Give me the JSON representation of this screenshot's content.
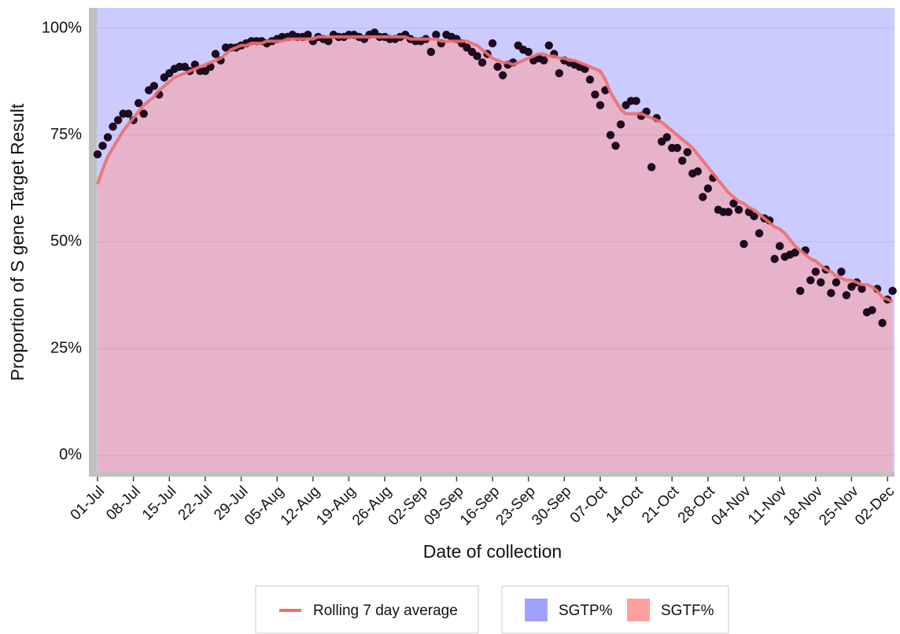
{
  "chart_data": {
    "type": "area",
    "y_label": "Proportion of S gene Target Result",
    "x_label": "Date of collection",
    "ylim": [
      -3.9,
      104.8
    ],
    "yticks": [
      {
        "value": 0,
        "label": "0%"
      },
      {
        "value": 25,
        "label": "25%"
      },
      {
        "value": 50,
        "label": "50%"
      },
      {
        "value": 75,
        "label": "75%"
      },
      {
        "value": 100,
        "label": "100%"
      }
    ],
    "grid": true,
    "categories": [
      "01-Jul",
      null,
      null,
      null,
      null,
      null,
      null,
      "08-Jul",
      null,
      null,
      null,
      null,
      null,
      null,
      "15-Jul",
      null,
      null,
      null,
      null,
      null,
      null,
      "22-Jul",
      null,
      null,
      null,
      null,
      null,
      null,
      "29-Jul",
      null,
      null,
      null,
      null,
      null,
      null,
      "05-Aug",
      null,
      null,
      null,
      null,
      null,
      null,
      "12-Aug",
      null,
      null,
      null,
      null,
      null,
      null,
      "19-Aug",
      null,
      null,
      null,
      null,
      null,
      null,
      "26-Aug",
      null,
      null,
      null,
      null,
      null,
      null,
      "02-Sep",
      null,
      null,
      null,
      null,
      null,
      null,
      "09-Sep",
      null,
      null,
      null,
      null,
      null,
      null,
      "16-Sep",
      null,
      null,
      null,
      null,
      null,
      null,
      "23-Sep",
      null,
      null,
      null,
      null,
      null,
      null,
      "30-Sep",
      null,
      null,
      null,
      null,
      null,
      null,
      "07-Oct",
      null,
      null,
      null,
      null,
      null,
      null,
      "14-Oct",
      null,
      null,
      null,
      null,
      null,
      null,
      "21-Oct",
      null,
      null,
      null,
      null,
      null,
      null,
      "28-Oct",
      null,
      null,
      null,
      null,
      null,
      null,
      "04-Nov",
      null,
      null,
      null,
      null,
      null,
      null,
      "11-Nov",
      null,
      null,
      null,
      null,
      null,
      null,
      "18-Nov",
      null,
      null,
      null,
      null,
      null,
      null,
      "25-Nov",
      null,
      null,
      null,
      null,
      null,
      null,
      "02-Dec",
      null
    ],
    "series": [
      {
        "name": "Rolling 7 day average",
        "color": "#f06e6e",
        "values": [
          63.5,
          67,
          70,
          72,
          74,
          76,
          77.5,
          79,
          80.5,
          82,
          83,
          84,
          85.5,
          86.5,
          87.5,
          88.5,
          89,
          89.5,
          90,
          90.5,
          91,
          91.5,
          92,
          92.5,
          93,
          94,
          95,
          95.5,
          96,
          96,
          96.5,
          96.5,
          96.5,
          97,
          97,
          97,
          97,
          97.5,
          97.5,
          97.5,
          97.5,
          97.5,
          97.5,
          98,
          98,
          98,
          98,
          98,
          98,
          98,
          98,
          98,
          98,
          98,
          98,
          98,
          98,
          98,
          98,
          98,
          98,
          97.5,
          97.5,
          97.5,
          97.5,
          97.5,
          97.5,
          97,
          97,
          97,
          97,
          97,
          97,
          96.5,
          96,
          95,
          94,
          93,
          92.5,
          92,
          92,
          91.5,
          92,
          92.5,
          93,
          93.5,
          94,
          94,
          93.5,
          93.5,
          93,
          93,
          92.5,
          92.5,
          92,
          91.5,
          91,
          90.5,
          90,
          88,
          85,
          83,
          81,
          80,
          80,
          80,
          80,
          79.5,
          79,
          78.5,
          78,
          77,
          76,
          75,
          74,
          73,
          72,
          70.5,
          69,
          67.5,
          66,
          64.5,
          63,
          61.5,
          60.5,
          59.5,
          59,
          58,
          57.5,
          56.5,
          55.5,
          54.5,
          53.5,
          53,
          52,
          50.5,
          49,
          48,
          47,
          46,
          45.5,
          44.5,
          43.5,
          43,
          42,
          41.5,
          41,
          41,
          40.5,
          40,
          40,
          39.5,
          38.5,
          37,
          36.5,
          36
        ]
      }
    ],
    "areas": [
      {
        "name": "SGTP%",
        "color": "#a0a0ff"
      },
      {
        "name": "SGTF%",
        "color": "#ffa0a0"
      }
    ],
    "area_opacity": 0.55,
    "points": {
      "color": "#1e0a1e",
      "values": [
        70.5,
        72.5,
        74.5,
        77,
        78.5,
        80,
        80,
        78.5,
        82.5,
        80,
        85.5,
        86.5,
        84.5,
        88.5,
        89.5,
        90.5,
        91,
        91,
        90,
        91.5,
        90,
        90,
        91,
        94,
        92.5,
        95.5,
        95.5,
        95.5,
        96,
        96.5,
        97,
        97,
        97,
        96.5,
        97,
        97.5,
        98,
        98,
        98.5,
        98,
        98,
        98.5,
        97,
        98,
        97.5,
        97,
        98.5,
        98,
        98,
        98.5,
        98.5,
        98,
        97.5,
        98.5,
        99,
        98,
        98,
        97.5,
        97.5,
        98,
        98.5,
        97.5,
        97,
        97,
        97.5,
        94.5,
        98.5,
        96.5,
        98.5,
        98,
        97.5,
        96.5,
        95.5,
        94.5,
        93.5,
        92,
        94,
        96.5,
        91,
        89,
        91.5,
        92,
        96,
        95,
        94.5,
        92.5,
        93,
        92.5,
        96,
        94,
        89.5,
        92.5,
        92,
        91.5,
        91,
        90.5,
        88,
        84.5,
        82,
        85.5,
        75,
        72.5,
        77.5,
        82,
        83,
        83,
        79.5,
        80.5,
        67.5,
        79,
        73.5,
        74.5,
        72,
        72,
        69,
        71,
        66,
        66.5,
        60.5,
        62.5,
        65,
        57.5,
        57,
        57,
        59,
        57.5,
        49.5,
        57,
        56,
        52,
        55.5,
        55,
        46,
        49,
        46.5,
        47,
        47.5,
        38.5,
        48,
        41,
        43,
        40.5,
        43.5,
        38,
        40.5,
        43,
        37.5,
        39.5,
        40.5,
        39,
        33.5,
        34,
        39,
        31,
        36.5,
        38.5
      ]
    }
  }
}
